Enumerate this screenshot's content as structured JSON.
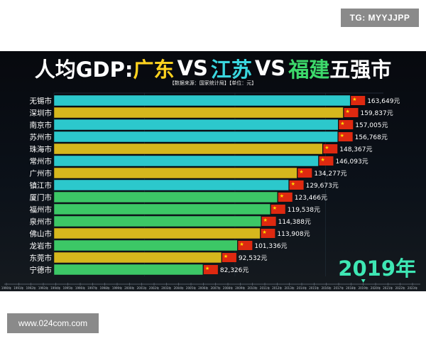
{
  "watermark_top": "TG: MYYJJPP",
  "watermark_bottom": "www.024com.com",
  "chart_data": {
    "type": "bar",
    "orientation": "horizontal",
    "title_parts": [
      {
        "text": "人均GDP:",
        "color": "#ffffff"
      },
      {
        "text": "广东",
        "color": "#ffd21f"
      },
      {
        "text": "VS",
        "color": "#ffffff"
      },
      {
        "text": "江苏",
        "color": "#3ad7df"
      },
      {
        "text": "VS",
        "color": "#ffffff"
      },
      {
        "text": "福建",
        "color": "#3dd96b"
      },
      {
        "text": "五强市",
        "color": "#ffffff"
      }
    ],
    "subtitle": "【数据来源：国家统计局】【单位：元】",
    "year_label": "2019年",
    "unit": "元",
    "xlim": [
      0,
      182000
    ],
    "province_colors": {
      "广东": "#d6b71d",
      "江苏": "#2cc8cc",
      "福建": "#3cc766"
    },
    "categories": [
      "无锡市",
      "深圳市",
      "南京市",
      "苏州市",
      "珠海市",
      "常州市",
      "广州市",
      "镇江市",
      "厦门市",
      "福州市",
      "泉州市",
      "佛山市",
      "龙岩市",
      "东莞市",
      "宁德市"
    ],
    "values": [
      163649,
      159837,
      157005,
      156768,
      148367,
      146093,
      134277,
      129673,
      123466,
      119538,
      114388,
      113908,
      101336,
      92532,
      82326
    ],
    "value_labels": [
      "163,649元",
      "159,837元",
      "157,005元",
      "156,768元",
      "148,367元",
      "146,093元",
      "134,277元",
      "129,673元",
      "123,466元",
      "119,538元",
      "114,388元",
      "113,908元",
      "101,336元",
      "92,532元",
      "82,326元"
    ],
    "provinces": [
      "江苏",
      "广东",
      "江苏",
      "江苏",
      "广东",
      "江苏",
      "广东",
      "江苏",
      "福建",
      "福建",
      "福建",
      "广东",
      "福建",
      "广东",
      "福建"
    ],
    "timeline": [
      "1990年",
      "1991年",
      "1992年",
      "1993年",
      "1994年",
      "1995年",
      "1996年",
      "1997年",
      "1998年",
      "1999年",
      "2000年",
      "2001年",
      "2002年",
      "2003年",
      "2004年",
      "2005年",
      "2006年",
      "2007年",
      "2008年",
      "2009年",
      "2010年",
      "2011年",
      "2012年",
      "2013年",
      "2014年",
      "2015年",
      "2016年",
      "2017年",
      "2018年",
      "2019年",
      "2020年",
      "2021年",
      "2022年",
      "2023年"
    ]
  }
}
